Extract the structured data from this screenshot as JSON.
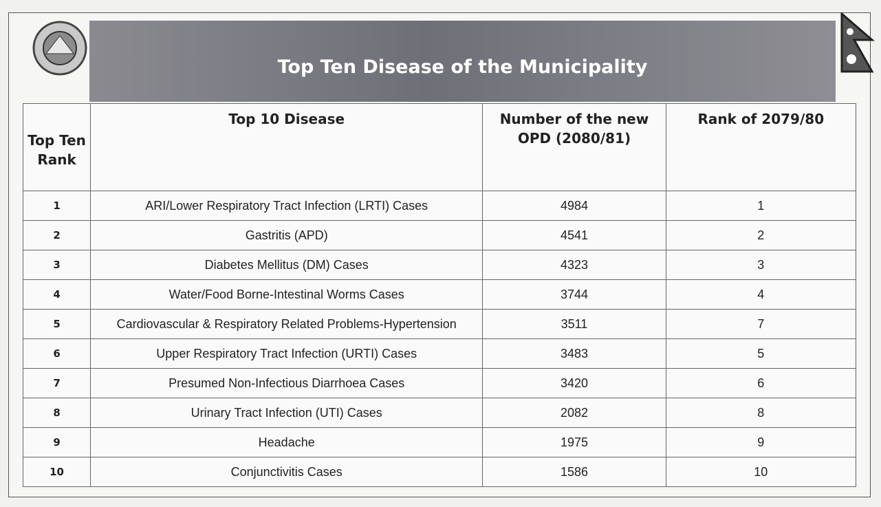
{
  "header": {
    "title": "Top Ten Disease of the Municipality"
  },
  "table": {
    "columns": [
      "Top Ten Rank",
      "Top 10 Disease",
      "Number of the new OPD (2080/81)",
      "Rank of 2079/80"
    ],
    "rows": [
      [
        1,
        "ARI/Lower Respiratory Tract Infection (LRTI) Cases",
        4984,
        1
      ],
      [
        2,
        "Gastritis (APD)",
        4541,
        2
      ],
      [
        3,
        "Diabetes Mellitus (DM) Cases",
        4323,
        3
      ],
      [
        4,
        "Water/Food Borne-Intestinal Worms Cases",
        3744,
        4
      ],
      [
        5,
        "Cardiovascular & Respiratory Related Problems-Hypertension",
        3511,
        7
      ],
      [
        6,
        "Upper Respiratory Tract Infection (URTI) Cases",
        3483,
        5
      ],
      [
        7,
        "Presumed Non-Infectious Diarrhoea Cases",
        3420,
        6
      ],
      [
        8,
        "Urinary Tract Infection (UTI) Cases",
        2082,
        8
      ],
      [
        9,
        "Headache",
        1975,
        9
      ],
      [
        10,
        "Conjunctivitis Cases",
        1586,
        10
      ]
    ]
  }
}
